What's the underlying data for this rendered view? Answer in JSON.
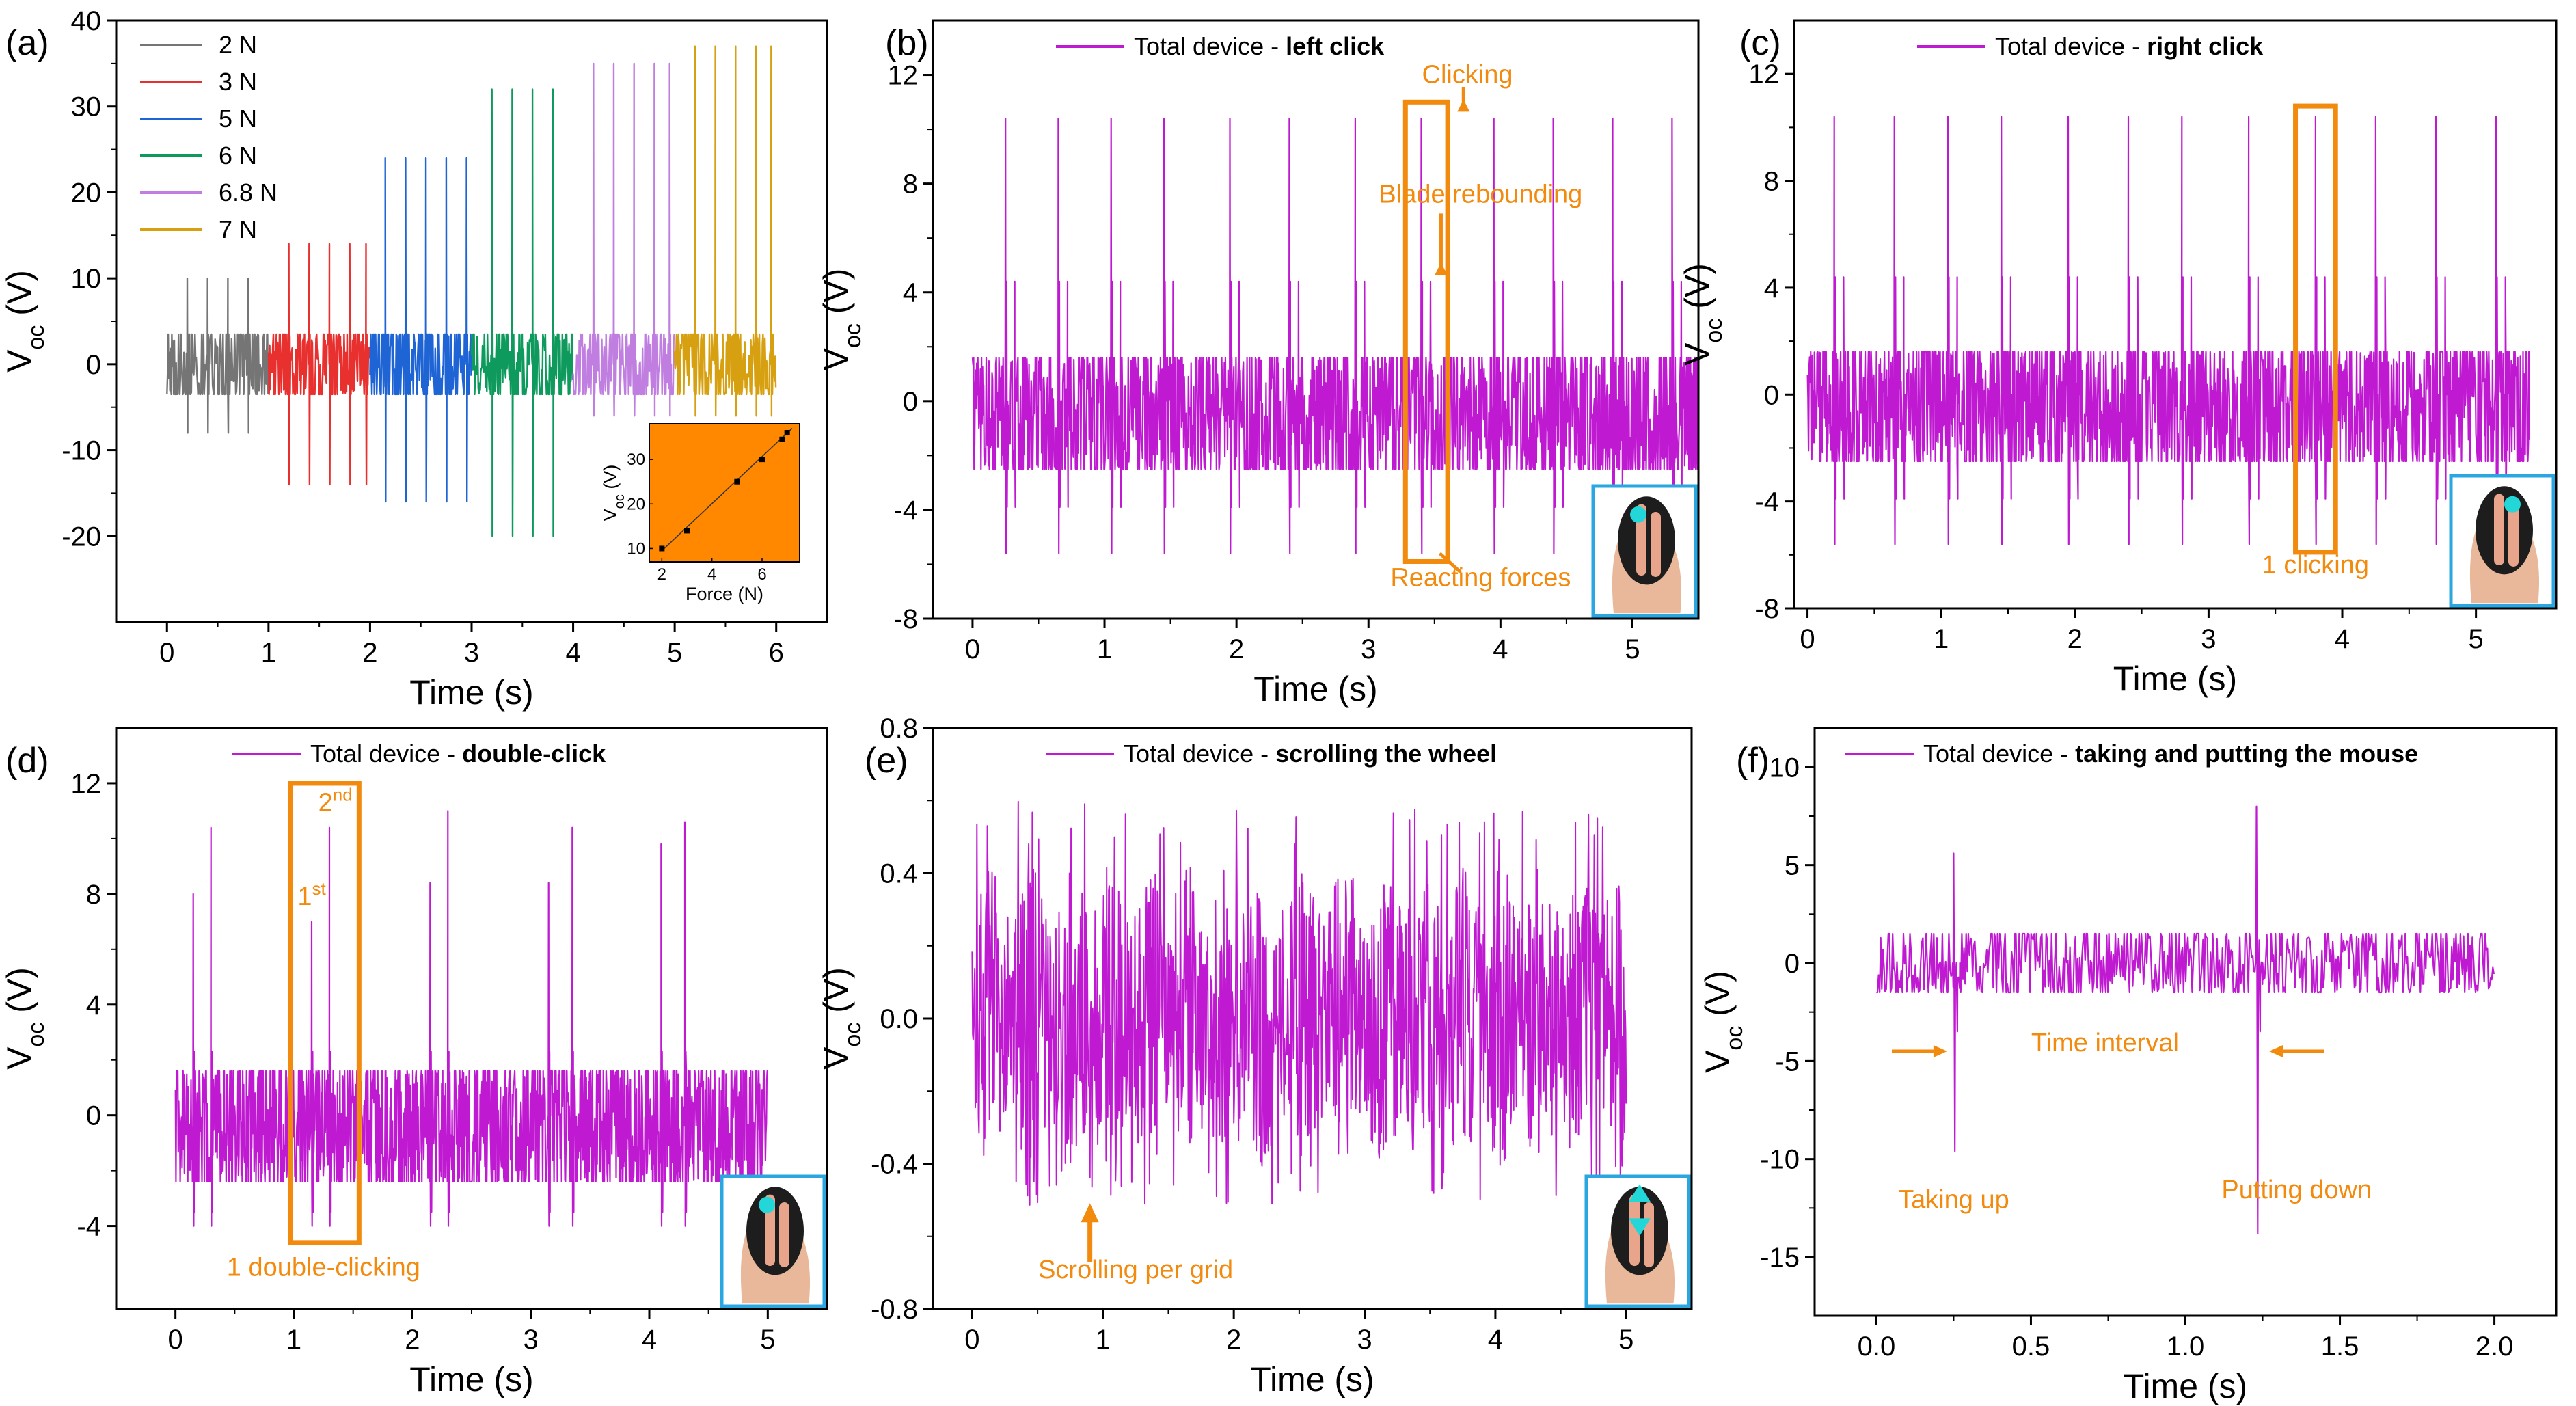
{
  "figure": {
    "accent_color": "#bf1ad1",
    "annotation_color": "#f28a0e",
    "icon_frame_color": "#2aa7e0"
  },
  "chart_data": [
    {
      "panel": "(a)",
      "type": "line",
      "xlabel": "Time (s)",
      "ylabel": "V",
      "ylabel_sub": "oc",
      "ylabel_unit": " (V)",
      "xlim": [
        -0.5,
        6.5
      ],
      "ylim": [
        -30,
        40
      ],
      "xticks": [
        0,
        1,
        2,
        3,
        4,
        5,
        6
      ],
      "yticks": [
        -20,
        -10,
        0,
        10,
        20,
        30,
        40
      ],
      "series": [
        {
          "name": "2 N",
          "color": "#757575",
          "t_start": 0,
          "t_end": 1,
          "peak_times": [
            0.2,
            0.4,
            0.6,
            0.8
          ],
          "peak_pos": 10,
          "peak_neg": -8,
          "noise": 3.5
        },
        {
          "name": "3 N",
          "color": "#e8302f",
          "t_start": 1,
          "t_end": 2,
          "peak_times": [
            1.2,
            1.4,
            1.6,
            1.8,
            1.96
          ],
          "peak_pos": 14,
          "peak_neg": -14,
          "noise": 3.5
        },
        {
          "name": "5 N",
          "color": "#1f64d4",
          "t_start": 2,
          "t_end": 3,
          "peak_times": [
            2.15,
            2.35,
            2.55,
            2.75,
            2.95
          ],
          "peak_pos": 24,
          "peak_neg": -16,
          "noise": 3.5
        },
        {
          "name": "6 N",
          "color": "#0d9a5c",
          "t_start": 3,
          "t_end": 4,
          "peak_times": [
            3.2,
            3.4,
            3.6,
            3.8
          ],
          "peak_pos": 32,
          "peak_neg": -20,
          "noise": 3.5
        },
        {
          "name": "6.8 N",
          "color": "#c07fe0",
          "t_start": 4,
          "t_end": 5,
          "peak_times": [
            4.2,
            4.4,
            4.6,
            4.8,
            4.95
          ],
          "peak_pos": 35,
          "peak_neg": -6,
          "noise": 3.5
        },
        {
          "name": "7 N",
          "color": "#d6a011",
          "t_start": 5,
          "t_end": 6,
          "peak_times": [
            5.2,
            5.4,
            5.6,
            5.8,
            5.95
          ],
          "peak_pos": 37,
          "peak_neg": -6,
          "noise": 3.5
        }
      ],
      "inset": {
        "type": "scatter",
        "xlabel": "Force (N)",
        "ylabel": "V",
        "ylabel_sub": "oc",
        "ylabel_unit": " (V)",
        "xlim": [
          1.5,
          7.5
        ],
        "ylim": [
          7,
          38
        ],
        "xticks": [
          2,
          4,
          6
        ],
        "yticks": [
          10,
          20,
          30
        ],
        "x": [
          2,
          3,
          5,
          6,
          6.8,
          7
        ],
        "y": [
          10,
          14,
          25,
          30,
          34.5,
          36
        ],
        "background": "#ff8800"
      }
    },
    {
      "panel": "(b)",
      "type": "line",
      "legend": "Total device - ",
      "legend_bold": "left click",
      "xlabel": "Time (s)",
      "ylabel": "V",
      "ylabel_sub": "oc",
      "ylabel_unit": " (V)",
      "xlim": [
        -0.3,
        5.5
      ],
      "ylim": [
        -8,
        14
      ],
      "xticks": [
        0,
        1,
        2,
        3,
        4,
        5
      ],
      "yticks": [
        -8,
        -4,
        0,
        4,
        8,
        12
      ],
      "color": "#bf1ad1",
      "t_start": 0,
      "t_end": 5.5,
      "noise_high": 1.6,
      "noise_low": -2.5,
      "peak_times": [
        0.25,
        0.65,
        1.05,
        1.45,
        1.95,
        2.4,
        2.9,
        3.4,
        3.95,
        4.4,
        4.85,
        5.3
      ],
      "peak_pos": 10.4,
      "peak_neg": -5.6,
      "secondary_pos": 4.4,
      "secondary_neg": -3.9,
      "annotations": [
        {
          "text": "Clicking",
          "x": 3.75,
          "y": 11.7
        },
        {
          "text": "Blade rebounding",
          "x": 3.85,
          "y": 7.3
        },
        {
          "text": "Reacting forces",
          "x": 3.85,
          "y": -6.8
        }
      ],
      "highlight": {
        "x0": 3.28,
        "x1": 3.6,
        "y0": -5.9,
        "y1": 11.0
      },
      "icon": "mouse-left-click-icon"
    },
    {
      "panel": "(c)",
      "type": "line",
      "legend": "Total device - ",
      "legend_bold": "right click",
      "xlabel": "Time (s)",
      "ylabel": "V",
      "ylabel_sub": "oc",
      "ylabel_unit": " (V)",
      "xlim": [
        -0.1,
        5.6
      ],
      "ylim": [
        -8,
        14
      ],
      "xticks": [
        0,
        1,
        2,
        3,
        4,
        5
      ],
      "yticks": [
        -8,
        -4,
        0,
        4,
        8,
        12
      ],
      "color": "#bf1ad1",
      "t_start": 0,
      "t_end": 5.4,
      "noise_high": 1.6,
      "noise_low": -2.5,
      "peak_times": [
        0.2,
        0.65,
        1.05,
        1.45,
        1.95,
        2.4,
        2.8,
        3.3,
        3.8,
        4.25,
        4.7,
        5.15
      ],
      "peak_pos": 10.4,
      "peak_neg": -5.6,
      "secondary_pos": 4.4,
      "secondary_neg": -3.9,
      "annotations": [
        {
          "text": "1 clicking",
          "x": 3.8,
          "y": -6.7
        }
      ],
      "highlight": {
        "x0": 3.65,
        "x1": 3.95,
        "y0": -5.9,
        "y1": 10.8
      },
      "icon": "mouse-right-click-icon"
    },
    {
      "panel": "(d)",
      "type": "line",
      "legend": "Total device - ",
      "legend_bold": "double-click",
      "xlabel": "Time (s)",
      "ylabel": "V",
      "ylabel_sub": "oc",
      "ylabel_unit": " (V)",
      "xlim": [
        -0.5,
        5.5
      ],
      "ylim": [
        -7,
        14
      ],
      "xticks": [
        0,
        1,
        2,
        3,
        4,
        5
      ],
      "yticks": [
        -4,
        0,
        4,
        8,
        12
      ],
      "color": "#bf1ad1",
      "t_start": 0,
      "t_end": 5.0,
      "noise_high": 1.6,
      "noise_low": -2.4,
      "peak_times": [
        0.15,
        0.3,
        1.15,
        1.3,
        2.15,
        2.3,
        3.15,
        3.35,
        4.1,
        4.3
      ],
      "peak_heights": [
        8,
        10.4,
        7,
        10.4,
        8.4,
        11,
        8.4,
        10.4,
        9.8,
        10.6
      ],
      "peak_neg": -4,
      "secondary_pos": 2.3,
      "secondary_neg": -3.5,
      "annotations": [
        {
          "text": "2",
          "sup": "nd",
          "x": 1.35,
          "y": 11.0
        },
        {
          "text": "1",
          "sup": "st",
          "x": 1.15,
          "y": 7.6
        },
        {
          "text": "1 double-clicking",
          "x": 1.25,
          "y": -5.8
        }
      ],
      "highlight": {
        "x0": 0.97,
        "x1": 1.55,
        "y0": -4.6,
        "y1": 12.0
      },
      "icon": "mouse-double-click-icon"
    },
    {
      "panel": "(e)",
      "type": "line",
      "legend": "Total device - ",
      "legend_bold": "scrolling the wheel",
      "xlabel": "Time (s)",
      "ylabel": "V",
      "ylabel_sub": "oc",
      "ylabel_unit": "  (V)",
      "xlim": [
        -0.3,
        5.5
      ],
      "ylim": [
        -0.8,
        0.8
      ],
      "xticks": [
        0,
        1,
        2,
        3,
        4,
        5
      ],
      "yticks": [
        -0.8,
        -0.4,
        0.0,
        0.4,
        0.8
      ],
      "color": "#bf1ad1",
      "t_start": 0,
      "t_end": 5.0,
      "noise_high": 0.42,
      "noise_low": -0.42,
      "peak_pos": 0.6,
      "peak_neg": -0.52,
      "period": 0.3,
      "annotations": [
        {
          "text": "Scrolling per grid",
          "x": 1.25,
          "y": -0.715
        }
      ],
      "arrow": {
        "x": 0.9,
        "y0": -0.67,
        "y1": -0.52
      },
      "icon": "mouse-scroll-icon"
    },
    {
      "panel": "(f)",
      "type": "line",
      "legend": "Total device - ",
      "legend_bold": "taking and putting the mouse",
      "xlabel": "Time (s)",
      "ylabel": "V",
      "ylabel_sub": "oc",
      "ylabel_unit": " (V)",
      "xlim": [
        -0.2,
        2.2
      ],
      "ylim": [
        -18,
        12
      ],
      "xticks": [
        0.0,
        0.5,
        1.0,
        1.5,
        2.0
      ],
      "yticks": [
        -15,
        -10,
        -5,
        0,
        5,
        10
      ],
      "xtick_labels": [
        "0.0",
        "0.5",
        "1.0",
        "1.5",
        "2.0"
      ],
      "color": "#bf1ad1",
      "t_start": 0,
      "t_end": 2.0,
      "noise_high": 1.5,
      "noise_low": -1.5,
      "events": [
        {
          "t": 0.25,
          "pos": 5.6,
          "neg": -9.6
        },
        {
          "t": 1.23,
          "pos": 8.0,
          "neg": -13.8
        }
      ],
      "annotations": [
        {
          "text": "Time interval",
          "x": 0.74,
          "y": -4.5
        },
        {
          "text": "Taking up",
          "x": 0.25,
          "y": -12.5
        },
        {
          "text": "Putting down",
          "x": 1.36,
          "y": -12.0
        }
      ],
      "arrows": [
        {
          "x0": 0.05,
          "x1": 0.22,
          "y": -4.5
        },
        {
          "x0": 1.45,
          "x1": 1.28,
          "y": -4.5
        }
      ]
    }
  ]
}
